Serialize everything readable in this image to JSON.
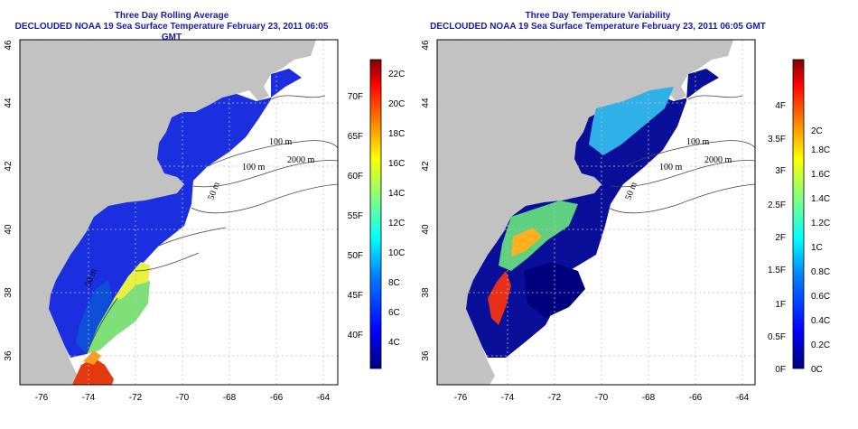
{
  "colors": {
    "land": "#c2c2c2",
    "title": "#1a1aa6",
    "grid": "#bdbdbd",
    "scale": [
      "#00007f",
      "#0000ff",
      "#0080ff",
      "#00ffff",
      "#80ff80",
      "#ffff00",
      "#ff8000",
      "#ff0000",
      "#7f0000"
    ]
  },
  "panels": [
    {
      "id": "left",
      "title": "Three Day Rolling Average",
      "subtitle": "DECLOUDED NOAA 19 Sea Surface Temperature February 23, 2011 06:05 GMT",
      "x_ticks": [
        "-76",
        "-74",
        "-72",
        "-70",
        "-68",
        "-66",
        "-64"
      ],
      "y_ticks": [
        "36",
        "38",
        "40",
        "42",
        "44",
        "46"
      ],
      "isobaths": [
        "100 m",
        "100 m",
        "2000 m",
        "50 m",
        "50 m"
      ],
      "colorbar": {
        "icon": "colorbar-icon",
        "left_labels": [
          "40F",
          "45F",
          "50F",
          "55F",
          "60F",
          "65F",
          "70F"
        ],
        "right_labels": [
          "4C",
          "6C",
          "8C",
          "10C",
          "12C",
          "14C",
          "16C",
          "18C",
          "20C",
          "22C"
        ]
      }
    },
    {
      "id": "right",
      "title": "Three Day Temperature Variability",
      "subtitle": "DECLOUDED NOAA 19 Sea Surface Temperature February 23, 2011 06:05 GMT",
      "x_ticks": [
        "-76",
        "-74",
        "-72",
        "-70",
        "-68",
        "-66",
        "-64"
      ],
      "y_ticks": [
        "36",
        "38",
        "40",
        "42",
        "44",
        "46"
      ],
      "isobaths": [
        "100 m",
        "100 m",
        "2000 m",
        "50 m"
      ],
      "colorbar": {
        "icon": "colorbar-icon",
        "left_labels": [
          "0F",
          "0.5F",
          "1F",
          "1.5F",
          "2F",
          "2.5F",
          "3F",
          "3.5F",
          "4F"
        ],
        "right_labels": [
          "0C",
          "0.2C",
          "0.4C",
          "0.6C",
          "0.8C",
          "1C",
          "1.2C",
          "1.4C",
          "1.6C",
          "1.8C",
          "2C"
        ]
      }
    }
  ]
}
